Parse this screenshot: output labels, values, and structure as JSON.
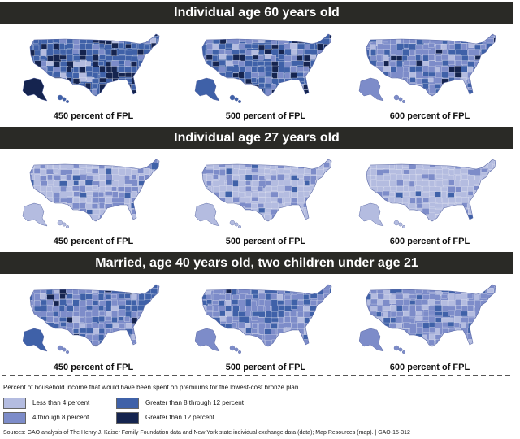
{
  "colors": {
    "lt4": "#b4bce0",
    "r4to8": "#7d8cc9",
    "r8to12": "#3f61a8",
    "gt12": "#15244f",
    "band": "#2a2a26"
  },
  "sections": [
    {
      "title": "Individual age 60 years old",
      "panels": [
        {
          "caption": "450 percent of FPL",
          "base": "r8to12",
          "mix": [
            0.05,
            0.1,
            0.55,
            0.3
          ]
        },
        {
          "caption": "500 percent of FPL",
          "base": "r8to12",
          "mix": [
            0.05,
            0.25,
            0.5,
            0.2
          ]
        },
        {
          "caption": "600 percent of FPL",
          "base": "r4to8",
          "mix": [
            0.1,
            0.5,
            0.3,
            0.1
          ]
        }
      ]
    },
    {
      "title": "Individual age 27 years old",
      "panels": [
        {
          "caption": "450 percent of FPL",
          "base": "lt4",
          "mix": [
            0.55,
            0.35,
            0.1,
            0.0
          ]
        },
        {
          "caption": "500 percent of FPL",
          "base": "lt4",
          "mix": [
            0.6,
            0.32,
            0.08,
            0.0
          ]
        },
        {
          "caption": "600 percent of FPL",
          "base": "lt4",
          "mix": [
            0.85,
            0.13,
            0.02,
            0.0
          ]
        }
      ]
    },
    {
      "title": "Married, age 40 years old, two children under age 21",
      "panels": [
        {
          "caption": "450 percent of FPL",
          "base": "r4to8",
          "mix": [
            0.05,
            0.5,
            0.4,
            0.05
          ]
        },
        {
          "caption": "500 percent of FPL",
          "base": "r4to8",
          "mix": [
            0.08,
            0.6,
            0.3,
            0.02
          ]
        },
        {
          "caption": "600 percent of FPL",
          "base": "r4to8",
          "mix": [
            0.3,
            0.55,
            0.15,
            0.0
          ]
        }
      ]
    }
  ],
  "legend": {
    "title": "Percent of household income that would have been spent on premiums for the lowest-cost bronze plan",
    "items": [
      {
        "label": "Less than 4 percent",
        "color": "lt4"
      },
      {
        "label": "4 through 8 percent",
        "color": "r4to8"
      },
      {
        "label": "Greater than 8 through 12 percent",
        "color": "r8to12"
      },
      {
        "label": "Greater than 12 percent",
        "color": "gt12"
      }
    ]
  },
  "source": "Sources: GAO analysis of The Henry J. Kaiser Family Foundation data and New York state individual exchange data (data); Map Resources (map).  |  GAO-15-312"
}
